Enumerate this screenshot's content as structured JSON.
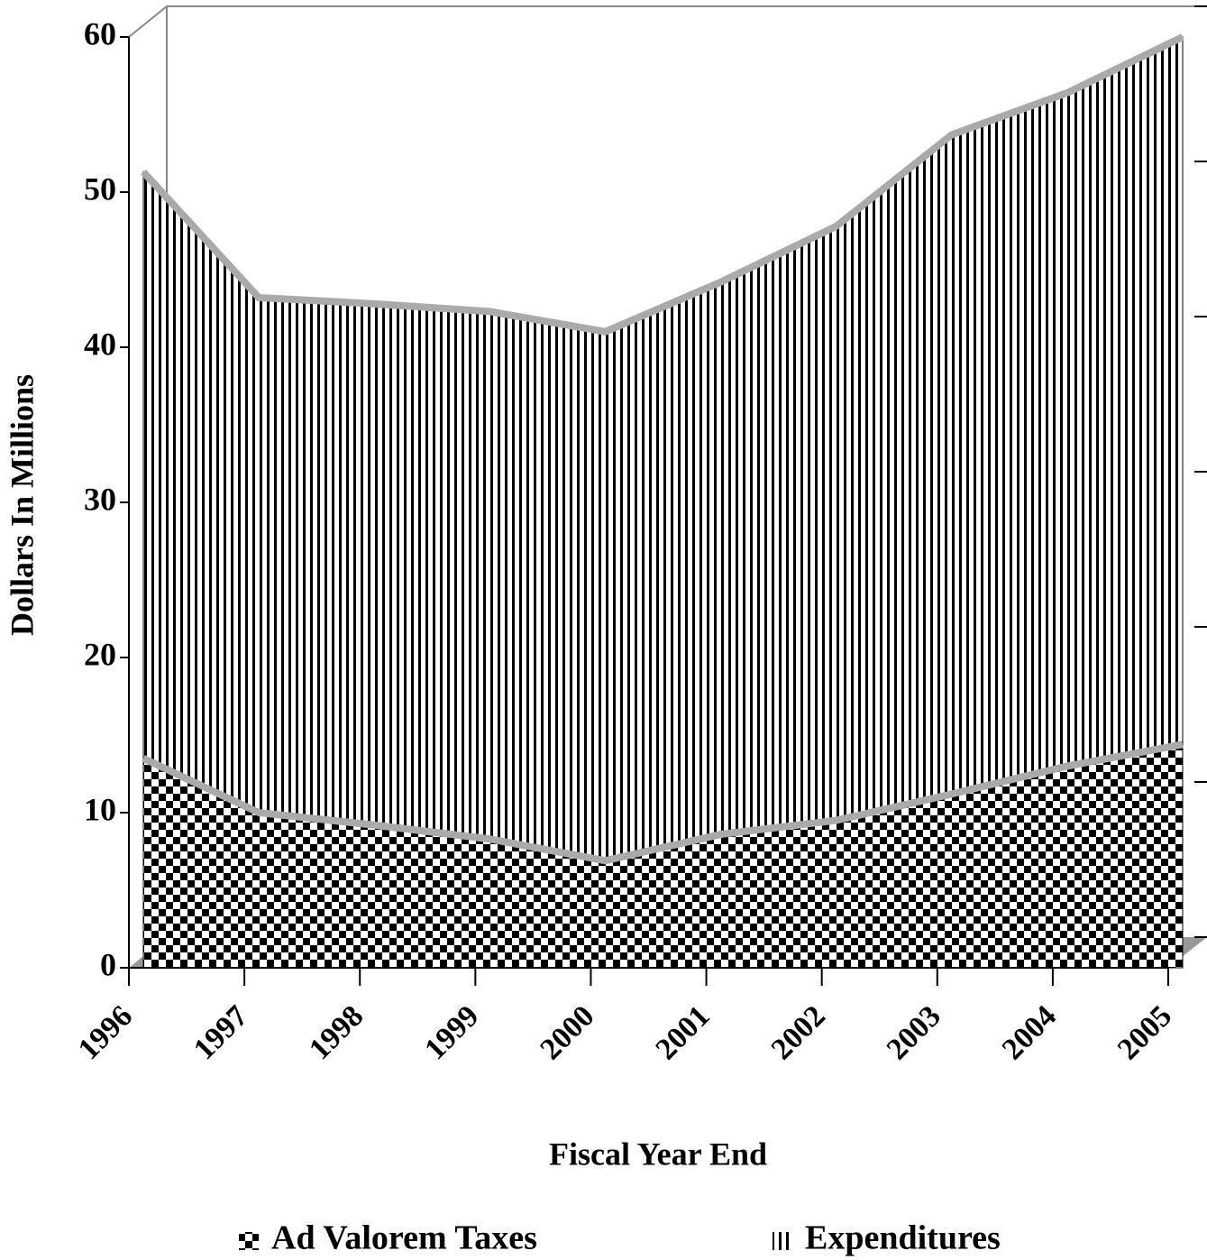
{
  "chart_data": {
    "type": "area",
    "x_label": "Fiscal Year End",
    "y_label": "Dollars In Millions",
    "x": [
      1996,
      1997,
      1998,
      1999,
      2000,
      2001,
      2002,
      2003,
      2004,
      2005
    ],
    "series": [
      {
        "name": "Expenditures",
        "color": "#000000",
        "pattern": "vertical-lines",
        "values": [
          51.3,
          43.2,
          42.8,
          42.3,
          41.0,
          44.2,
          47.8,
          53.7,
          56.4,
          60.0
        ]
      },
      {
        "name": "Ad Valorem Taxes",
        "color": "#000000",
        "pattern": "checkerboard",
        "values": [
          13.5,
          10.0,
          9.2,
          8.3,
          6.9,
          8.6,
          9.5,
          11.2,
          13.0,
          14.4
        ]
      }
    ],
    "ylim": [
      0,
      60
    ],
    "yticks": [
      0,
      10,
      20,
      30,
      40,
      50,
      60
    ]
  }
}
